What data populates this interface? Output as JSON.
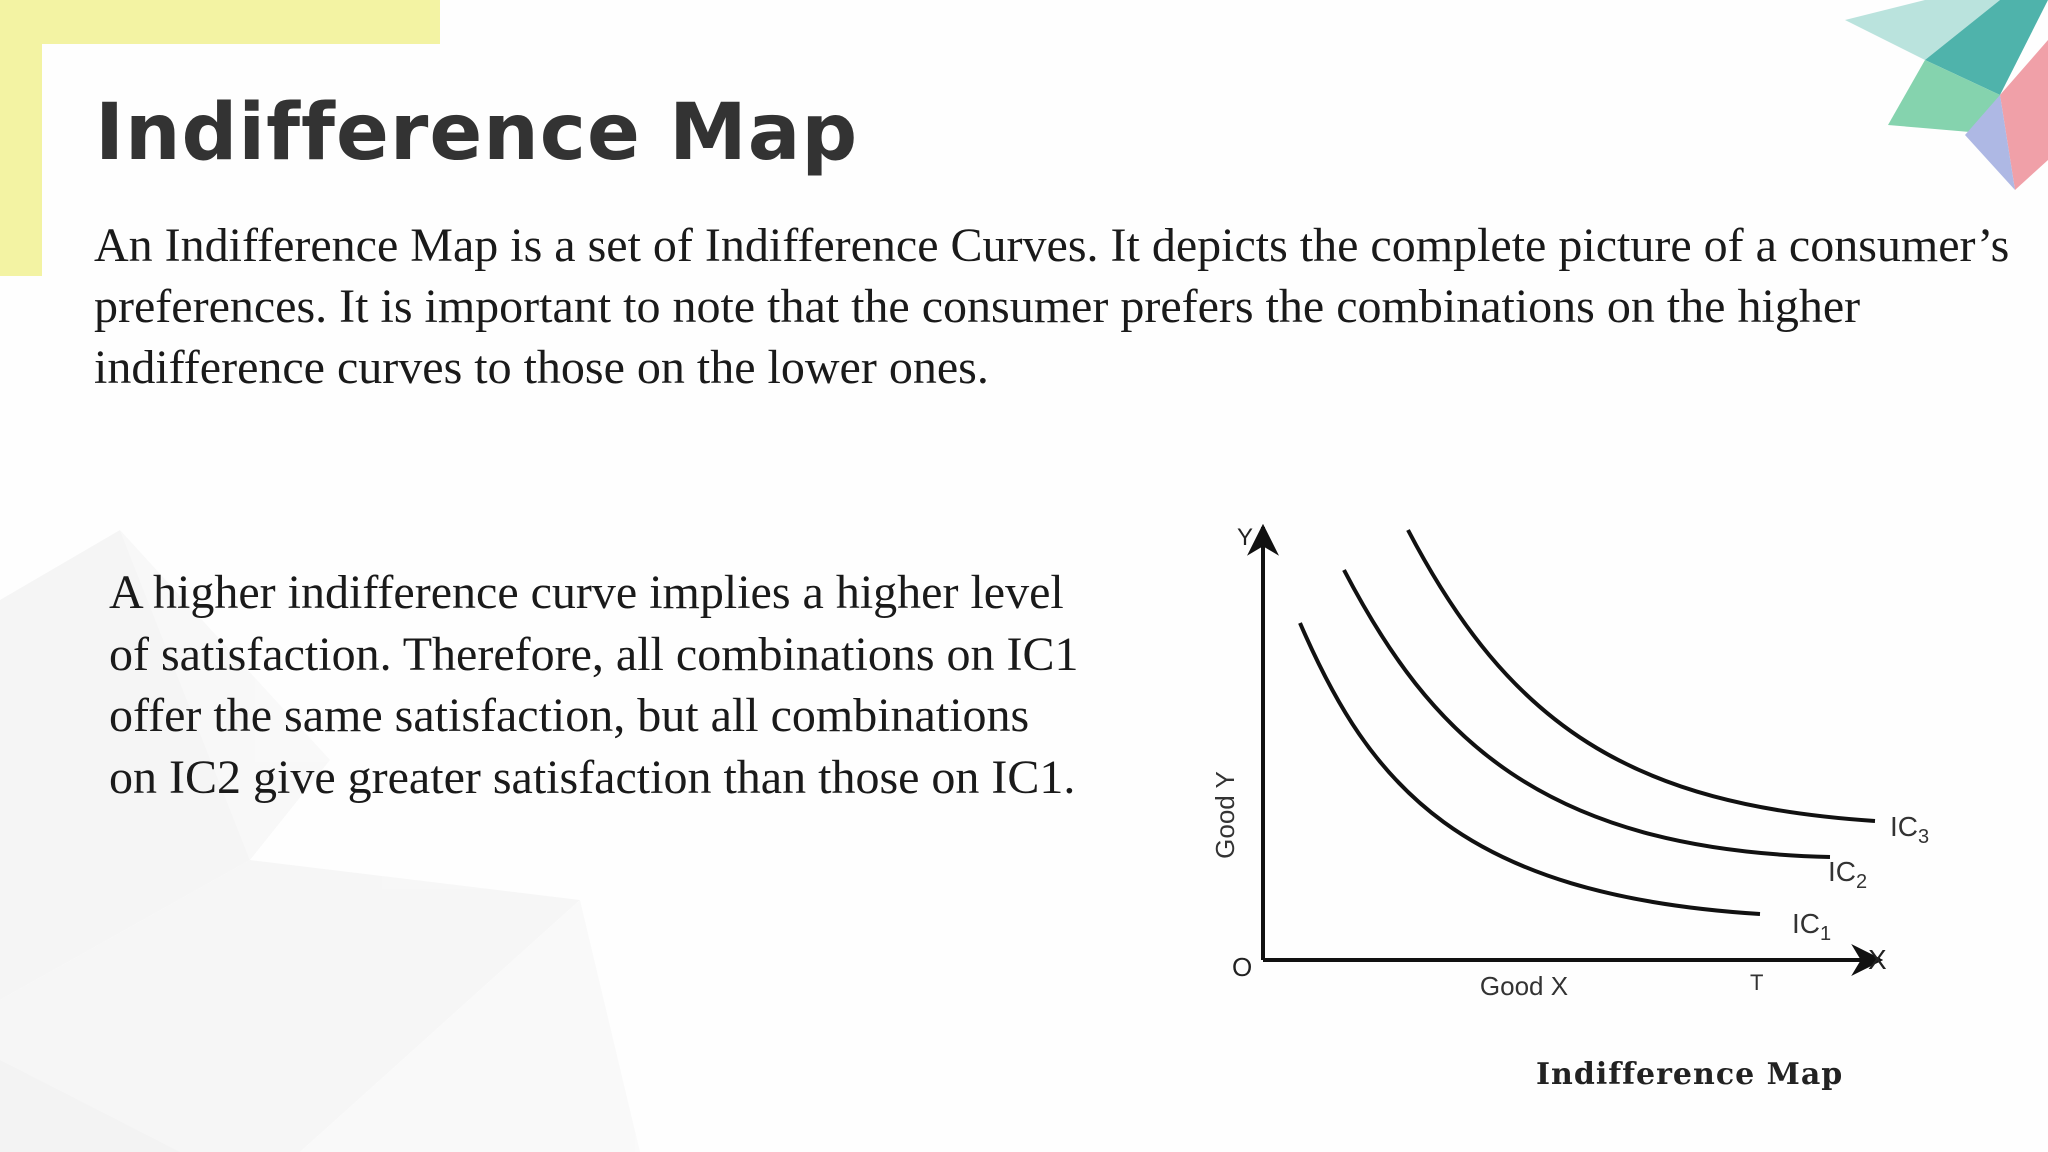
{
  "slide": {
    "title": "Indifference Map",
    "intro": "An Indifference Map is a set of Indifference Curves. It depicts the complete picture of a consumer’s preferences. It is important to note that the consumer prefers the combinations on the higher indifference curves to those on the lower ones.",
    "body": "A higher indifference curve implies a higher level of satisfaction. Therefore, all combinations on IC1 offer the same satisfaction, but all combinations on IC2 give greater satisfaction than those on IC1.",
    "colors": {
      "accent_yellow": "#f3f3a3",
      "teal": "#4fb3ab",
      "green": "#85d3ae",
      "pink": "#f0a0a8",
      "lavender": "#aeb8e4",
      "text": "#1a1a1a",
      "title": "#333333"
    }
  },
  "figure": {
    "caption": "Indifference Map",
    "axis_y_letter": "Y",
    "axis_x_letter": "X",
    "origin_label": "O",
    "y_axis_label": "Good Y",
    "x_axis_label": "Good X",
    "t_label": "T",
    "curves": [
      {
        "base": "IC",
        "sub": "1"
      },
      {
        "base": "IC",
        "sub": "2"
      },
      {
        "base": "IC",
        "sub": "3"
      }
    ]
  }
}
